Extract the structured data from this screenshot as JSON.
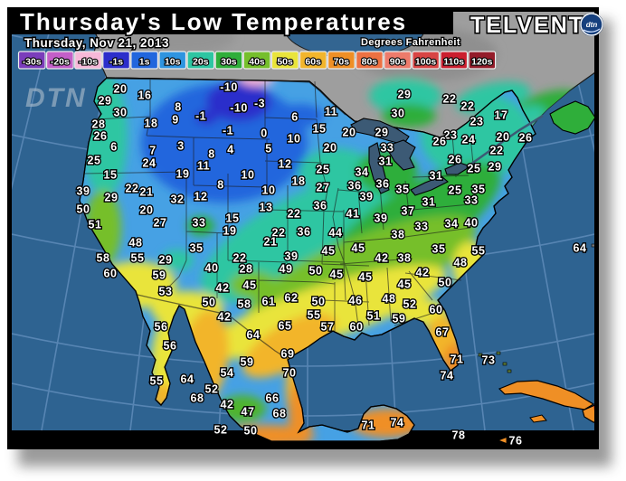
{
  "header": {
    "title": "Thursday's Low Temperatures",
    "date": "Thursday, Nov 21, 2013",
    "units_label": "Degrees Fahrenheit",
    "brand": "TELVENT",
    "brand_badge": "dtn",
    "watermark": "DTN"
  },
  "legend": {
    "items": [
      {
        "label": "-30s",
        "color": "#7b3dbb"
      },
      {
        "label": "-20s",
        "color": "#c45fc8"
      },
      {
        "label": "-10s",
        "color": "#f7b8d8"
      },
      {
        "label": "-1s",
        "color": "#2c2ecb"
      },
      {
        "label": "1s",
        "color": "#2266dd"
      },
      {
        "label": "10s",
        "color": "#2e94e0"
      },
      {
        "label": "20s",
        "color": "#2ec6a2"
      },
      {
        "label": "30s",
        "color": "#2fae3a"
      },
      {
        "label": "40s",
        "color": "#76bf2c"
      },
      {
        "label": "50s",
        "color": "#e9e43b"
      },
      {
        "label": "60s",
        "color": "#f2b52c"
      },
      {
        "label": "70s",
        "color": "#ef8f25"
      },
      {
        "label": "80s",
        "color": "#ed7142"
      },
      {
        "label": "90s",
        "color": "#ed7b6b"
      },
      {
        "label": "100s",
        "color": "#d84444"
      },
      {
        "label": "110s",
        "color": "#cb1f2f"
      },
      {
        "label": "120s",
        "color": "#941c2a"
      }
    ]
  },
  "map": {
    "colors": {
      "ocean": "#2e6391",
      "graticule": "#5f8cba",
      "canada_land": "#9e9e9e",
      "lakes": "#3c5a75",
      "frame": "#000000",
      "label_fill": "#ffffff"
    },
    "stations": [
      [
        "20",
        133,
        98
      ],
      [
        "16",
        160,
        105
      ],
      [
        "29",
        116,
        111
      ],
      [
        "30",
        133,
        124
      ],
      [
        "28",
        109,
        137
      ],
      [
        "18",
        167,
        136
      ],
      [
        "8",
        197,
        118
      ],
      [
        "9",
        194,
        132
      ],
      [
        "-1",
        222,
        128
      ],
      [
        "26",
        111,
        150
      ],
      [
        "6",
        126,
        162
      ],
      [
        "7",
        169,
        166
      ],
      [
        "3",
        200,
        161
      ],
      [
        "24",
        165,
        180
      ],
      [
        "25",
        104,
        177
      ],
      [
        "8",
        234,
        170
      ],
      [
        "11",
        225,
        183
      ],
      [
        "19",
        202,
        192
      ],
      [
        "15",
        122,
        193
      ],
      [
        "39",
        92,
        211
      ],
      [
        "29",
        123,
        218
      ],
      [
        "22",
        146,
        208
      ],
      [
        "21",
        162,
        212
      ],
      [
        "32",
        196,
        220
      ],
      [
        "12",
        222,
        217
      ],
      [
        "50",
        92,
        231
      ],
      [
        "20",
        162,
        232
      ],
      [
        "27",
        177,
        246
      ],
      [
        "33",
        220,
        246
      ],
      [
        "51",
        105,
        248
      ],
      [
        "48",
        150,
        268
      ],
      [
        "35",
        217,
        274
      ],
      [
        "58",
        114,
        285
      ],
      [
        "55",
        152,
        285
      ],
      [
        "29",
        183,
        287
      ],
      [
        "40",
        234,
        296
      ],
      [
        "60",
        122,
        302
      ],
      [
        "59",
        176,
        304
      ],
      [
        "53",
        183,
        322
      ],
      [
        "50",
        231,
        334
      ],
      [
        "-10",
        253,
        96
      ],
      [
        "-3",
        287,
        114
      ],
      [
        "-10",
        264,
        119
      ],
      [
        "-1",
        252,
        144
      ],
      [
        "0",
        292,
        147
      ],
      [
        "4",
        255,
        165
      ],
      [
        "5",
        297,
        164
      ],
      [
        "6",
        326,
        129
      ],
      [
        "11",
        366,
        123
      ],
      [
        "15",
        353,
        142
      ],
      [
        "20",
        386,
        146
      ],
      [
        "10",
        325,
        153
      ],
      [
        "20",
        365,
        163
      ],
      [
        "12",
        315,
        181
      ],
      [
        "10",
        274,
        193
      ],
      [
        "8",
        244,
        204
      ],
      [
        "10",
        297,
        210
      ],
      [
        "18",
        330,
        200
      ],
      [
        "25",
        357,
        187
      ],
      [
        "27",
        357,
        207
      ],
      [
        "13",
        294,
        229
      ],
      [
        "15",
        257,
        241
      ],
      [
        "19",
        254,
        255
      ],
      [
        "22",
        325,
        236
      ],
      [
        "22",
        308,
        257
      ],
      [
        "21",
        299,
        267
      ],
      [
        "36",
        354,
        227
      ],
      [
        "36",
        336,
        256
      ],
      [
        "39",
        322,
        283
      ],
      [
        "22",
        265,
        285
      ],
      [
        "28",
        272,
        297
      ],
      [
        "49",
        316,
        297
      ],
      [
        "42",
        246,
        318
      ],
      [
        "45",
        276,
        315
      ],
      [
        "29",
        447,
        104
      ],
      [
        "30",
        440,
        125
      ],
      [
        "29",
        422,
        146
      ],
      [
        "33",
        428,
        163
      ],
      [
        "31",
        426,
        178
      ],
      [
        "34",
        400,
        190
      ],
      [
        "36",
        392,
        205
      ],
      [
        "36",
        423,
        203
      ],
      [
        "35",
        445,
        209
      ],
      [
        "39",
        405,
        217
      ],
      [
        "41",
        390,
        236
      ],
      [
        "39",
        421,
        241
      ],
      [
        "44",
        371,
        257
      ],
      [
        "45",
        363,
        277
      ],
      [
        "45",
        396,
        274
      ],
      [
        "37",
        451,
        233
      ],
      [
        "31",
        474,
        223
      ],
      [
        "33",
        466,
        250
      ],
      [
        "34",
        499,
        247
      ],
      [
        "40",
        521,
        246
      ],
      [
        "38",
        440,
        259
      ],
      [
        "42",
        422,
        285
      ],
      [
        "38",
        447,
        285
      ],
      [
        "35",
        485,
        275
      ],
      [
        "55",
        529,
        277
      ],
      [
        "48",
        509,
        290
      ],
      [
        "45",
        372,
        303
      ],
      [
        "45",
        404,
        306
      ],
      [
        "50",
        349,
        299
      ],
      [
        "22",
        497,
        109
      ],
      [
        "22",
        517,
        117
      ],
      [
        "17",
        554,
        127
      ],
      [
        "23",
        527,
        134
      ],
      [
        "23",
        498,
        149
      ],
      [
        "24",
        518,
        154
      ],
      [
        "26",
        486,
        156
      ],
      [
        "20",
        556,
        151
      ],
      [
        "26",
        581,
        152
      ],
      [
        "22",
        549,
        166
      ],
      [
        "26",
        503,
        176
      ],
      [
        "25",
        524,
        186
      ],
      [
        "29",
        547,
        184
      ],
      [
        "31",
        482,
        194
      ],
      [
        "25",
        503,
        210
      ],
      [
        "35",
        529,
        209
      ],
      [
        "33",
        521,
        221
      ],
      [
        "58",
        270,
        336
      ],
      [
        "61",
        297,
        333
      ],
      [
        "62",
        322,
        329
      ],
      [
        "50",
        352,
        333
      ],
      [
        "46",
        393,
        332
      ],
      [
        "48",
        430,
        330
      ],
      [
        "52",
        453,
        336
      ],
      [
        "60",
        482,
        342
      ],
      [
        "51",
        413,
        349
      ],
      [
        "59",
        441,
        352
      ],
      [
        "55",
        347,
        348
      ],
      [
        "57",
        362,
        361
      ],
      [
        "60",
        394,
        361
      ],
      [
        "65",
        315,
        360
      ],
      [
        "64",
        280,
        370
      ],
      [
        "42",
        248,
        350
      ],
      [
        "42",
        467,
        301
      ],
      [
        "50",
        492,
        312
      ],
      [
        "45",
        447,
        314
      ],
      [
        "67",
        489,
        367
      ],
      [
        "71",
        505,
        397
      ],
      [
        "74",
        494,
        415
      ],
      [
        "73",
        540,
        398
      ],
      [
        "64",
        641,
        274
      ],
      [
        "69",
        318,
        391
      ],
      [
        "70",
        320,
        412
      ],
      [
        "59",
        273,
        400
      ],
      [
        "54",
        251,
        412
      ],
      [
        "56",
        178,
        361
      ],
      [
        "56",
        188,
        382
      ],
      [
        "55",
        173,
        421
      ],
      [
        "64",
        207,
        419
      ],
      [
        "68",
        218,
        440
      ],
      [
        "52",
        234,
        430
      ],
      [
        "66",
        301,
        440
      ],
      [
        "42",
        251,
        447
      ],
      [
        "47",
        274,
        455
      ],
      [
        "68",
        309,
        457
      ],
      [
        "52",
        244,
        475
      ],
      [
        "50",
        277,
        476
      ],
      [
        "71",
        407,
        470
      ],
      [
        "74",
        439,
        467
      ],
      [
        "78",
        507,
        481
      ],
      [
        "76",
        570,
        487,
        "arrow"
      ]
    ]
  }
}
